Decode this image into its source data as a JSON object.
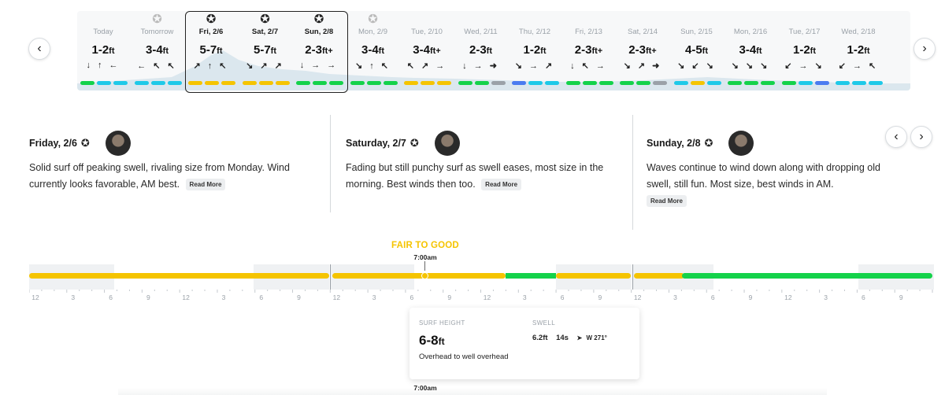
{
  "colors": {
    "good": "#14d24a",
    "fair": "#f5c400",
    "poor_fair": "#1ec9e8",
    "poor": "#4a7cf0",
    "flat": "#9aa1a8"
  },
  "forecast_days": [
    {
      "label": "Today",
      "height": "1-2",
      "unit": "ft",
      "arrows": "↓ ↑ ←",
      "star": "",
      "bars": [
        "good",
        "poor_fair",
        "poor_fair"
      ]
    },
    {
      "label": "Tomorrow",
      "height": "3-4",
      "unit": "ft",
      "arrows": "← ↖ ↖",
      "star": "grey",
      "bars": [
        "poor_fair",
        "poor_fair",
        "poor_fair"
      ]
    },
    {
      "label": "Fri, 2/6",
      "height": "5-7",
      "unit": "ft",
      "arrows": "↗ ↑ ↖",
      "star": "dark",
      "bars": [
        "fair",
        "fair",
        "fair"
      ]
    },
    {
      "label": "Sat, 2/7",
      "height": "5-7",
      "unit": "ft",
      "arrows": "↘ ↗ ↗",
      "star": "dark",
      "bars": [
        "fair",
        "fair",
        "fair"
      ]
    },
    {
      "label": "Sun, 2/8",
      "height": "2-3",
      "unit": "ft+",
      "arrows": "↓ → →",
      "star": "dark",
      "bars": [
        "good",
        "good",
        "good"
      ]
    },
    {
      "label": "Mon, 2/9",
      "height": "3-4",
      "unit": "ft",
      "arrows": "↘ ↑ ↖",
      "star": "grey",
      "bars": [
        "good",
        "good",
        "good"
      ]
    },
    {
      "label": "Tue, 2/10",
      "height": "3-4",
      "unit": "ft+",
      "arrows": "↖ ↗ →",
      "star": "",
      "bars": [
        "fair",
        "fair",
        "fair"
      ]
    },
    {
      "label": "Wed, 2/11",
      "height": "2-3",
      "unit": "ft",
      "arrows": "↓ → ➜",
      "star": "",
      "bars": [
        "good",
        "good",
        "flat"
      ]
    },
    {
      "label": "Thu, 2/12",
      "height": "1-2",
      "unit": "ft",
      "arrows": "↘ → ↗",
      "star": "",
      "bars": [
        "poor",
        "poor_fair",
        "poor_fair"
      ]
    },
    {
      "label": "Fri, 2/13",
      "height": "2-3",
      "unit": "ft+",
      "arrows": "↓ ↖ →",
      "star": "",
      "bars": [
        "good",
        "good",
        "good"
      ]
    },
    {
      "label": "Sat, 2/14",
      "height": "2-3",
      "unit": "ft+",
      "arrows": "↘ ↗ ➜",
      "star": "",
      "bars": [
        "good",
        "good",
        "flat"
      ]
    },
    {
      "label": "Sun, 2/15",
      "height": "4-5",
      "unit": "ft",
      "arrows": "↘ ↙ ↘",
      "star": "",
      "bars": [
        "poor_fair",
        "fair",
        "poor_fair"
      ]
    },
    {
      "label": "Mon, 2/16",
      "height": "3-4",
      "unit": "ft",
      "arrows": "↘ ↘ ↘",
      "star": "",
      "bars": [
        "good",
        "good",
        "good"
      ]
    },
    {
      "label": "Tue, 2/17",
      "height": "1-2",
      "unit": "ft",
      "arrows": "↙ → ↘",
      "star": "",
      "bars": [
        "good",
        "poor_fair",
        "poor"
      ]
    },
    {
      "label": "Wed, 2/18",
      "height": "1-2",
      "unit": "ft",
      "arrows": "↙ → ↖",
      "star": "",
      "bars": [
        "poor_fair",
        "poor_fair",
        "poor_fair"
      ]
    }
  ],
  "summaries": [
    {
      "title": "Friday, 2/6",
      "text": "Solid surf off peaking swell, rivaling size from Monday. Wind currently looks favorable, AM best.",
      "read_more": "Read More"
    },
    {
      "title": "Saturday, 2/7",
      "text": "Fading but still punchy surf as swell eases, most size in the morning. Best winds then too.",
      "read_more": "Read More"
    },
    {
      "title": "Sunday, 2/8",
      "text": "Waves continue to wind down along with dropping old swell, still fun. Most size, best winds in AM.",
      "read_more": "Read More"
    }
  ],
  "timeline": {
    "rating": "FAIR TO GOOD",
    "time": "7:00am",
    "time_bottom": "7:00am",
    "hour_ticks": [
      "12",
      "3",
      "6",
      "9",
      "12",
      "3",
      "6",
      "9",
      "12",
      "3",
      "6",
      "9",
      "12",
      "3",
      "6",
      "9",
      "12",
      "3",
      "6",
      "9",
      "12",
      "3",
      "6",
      "9"
    ]
  },
  "detail": {
    "surf_height_label": "SURF HEIGHT",
    "surf_height": "6-8",
    "surf_unit": "ft",
    "surf_desc": "Overhead to well overhead",
    "swell_label": "SWELL",
    "swell_height": "6.2ft",
    "swell_period": "14s",
    "swell_arrow": "➤",
    "swell_dir": "W 271°"
  }
}
